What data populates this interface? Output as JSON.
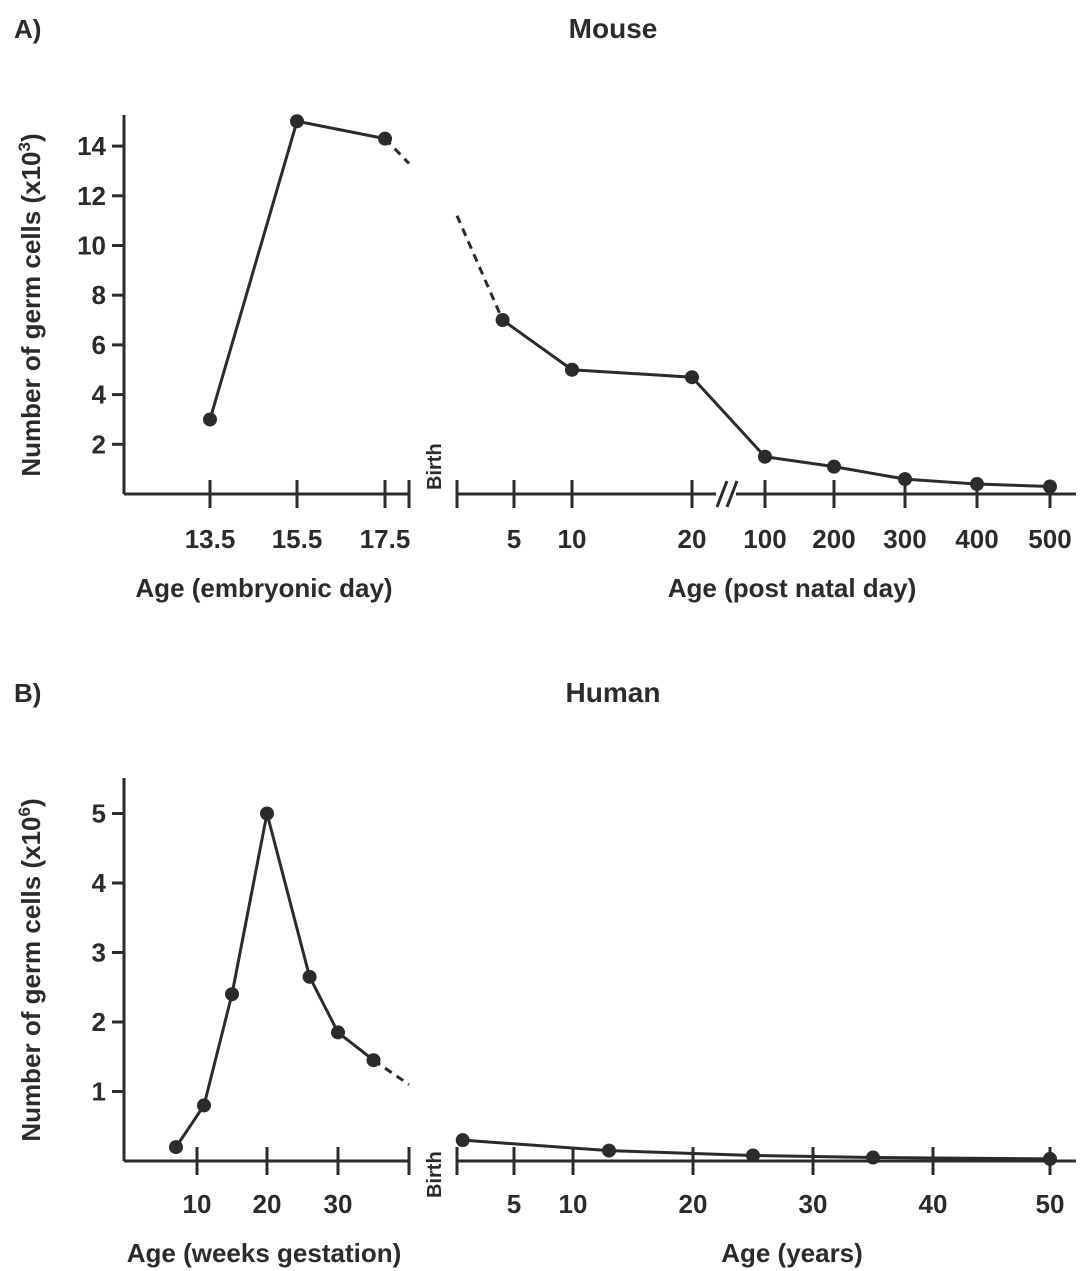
{
  "chart_data": [
    {
      "panel_label": "A)",
      "title": "Mouse",
      "type": "line",
      "ylabel": "Number of germ cells (x10",
      "ylabel_exp": "3",
      "ylabel_close": ")",
      "y_ticks": [
        "2",
        "4",
        "6",
        "8",
        "10",
        "12",
        "14"
      ],
      "ylim": [
        0,
        15
      ],
      "break_label": "Birth",
      "left_segment": {
        "xlabel": "Age (embryonic day)",
        "x_ticks": [
          "13.5",
          "15.5",
          "17.5"
        ],
        "series": [
          {
            "x": [
              13.5,
              15.5,
              17.5
            ],
            "y": [
              3.0,
              15.0,
              14.3
            ]
          }
        ]
      },
      "right_segment": {
        "xlabel": "Age (post natal day)",
        "x_ticks": [
          "5",
          "10",
          "20",
          "100",
          "200",
          "300",
          "400",
          "500"
        ],
        "axis_break_after": "20",
        "series": [
          {
            "x": [
              4,
              10,
              20,
              100,
              200,
              300,
              400,
              500
            ],
            "y": [
              7.0,
              5.0,
              4.7,
              1.5,
              1.1,
              0.6,
              0.4,
              0.3
            ]
          }
        ]
      }
    },
    {
      "panel_label": "B)",
      "title": "Human",
      "type": "line",
      "ylabel": "Number of germ cells (x10",
      "ylabel_exp": "6",
      "ylabel_close": ")",
      "y_ticks": [
        "1",
        "2",
        "3",
        "4",
        "5"
      ],
      "ylim": [
        0,
        5.5
      ],
      "break_label": "Birth",
      "left_segment": {
        "xlabel": "Age (weeks gestation)",
        "x_ticks": [
          "10",
          "20",
          "30"
        ],
        "series": [
          {
            "x": [
              7,
              11,
              15,
              20,
              26,
              30,
              35
            ],
            "y": [
              0.2,
              0.8,
              2.4,
              5.0,
              2.65,
              1.85,
              1.45
            ]
          }
        ]
      },
      "right_segment": {
        "xlabel": "Age (years)",
        "x_ticks": [
          "5",
          "10",
          "20",
          "30",
          "40",
          "50"
        ],
        "series": [
          {
            "x": [
              0.5,
              13,
              25,
              35,
              50
            ],
            "y": [
              0.3,
              0.15,
              0.08,
              0.05,
              0.03
            ]
          }
        ]
      }
    }
  ]
}
